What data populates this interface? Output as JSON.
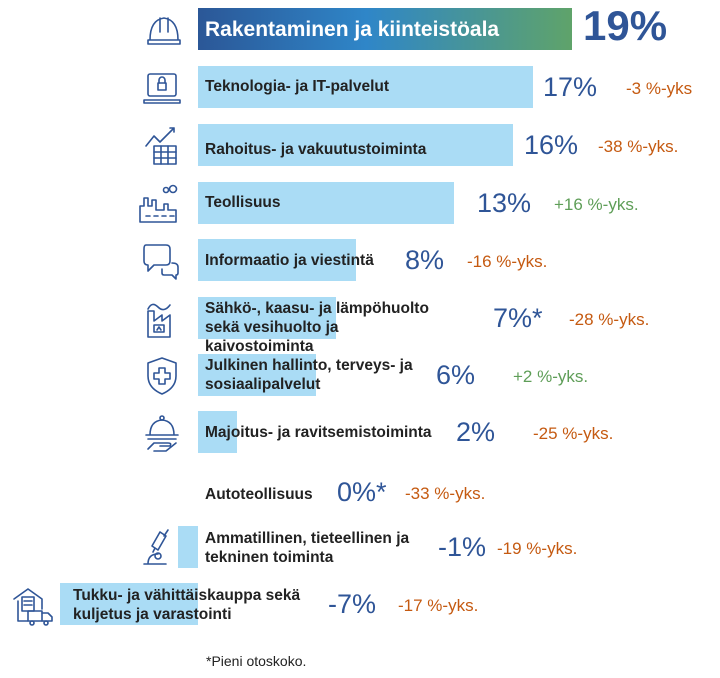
{
  "chart_data": {
    "type": "bar",
    "orientation": "horizontal",
    "unit": "%",
    "categories": [
      "Rakentaminen ja kiinteistöala",
      "Teknologia- ja IT-palvelut",
      "Rahoitus- ja vakuutustoiminta",
      "Teollisuus",
      "Informaatio ja viestintä",
      "Sähkö-, kaasu- ja lämpöhuolto sekä vesihuolto ja kaivostoiminta",
      "Julkinen hallinto, terveys- ja sosiaalipalvelut",
      "Majoitus- ja ravitsemistoiminta",
      "Autoteollisuus",
      "Ammatillinen, tieteellinen ja tekninen toiminta",
      "Tukku- ja vähittäiskauppa sekä kuljetus ja varastointi"
    ],
    "values": [
      19,
      17,
      16,
      13,
      8,
      7,
      6,
      2,
      0,
      -1,
      -7
    ],
    "value_labels": [
      "19%",
      "17%",
      "16%",
      "13%",
      "8%",
      "7%*",
      "6%",
      "2%",
      "0%*",
      "-1%",
      "-7%"
    ],
    "change_labels": [
      "",
      "-3 %-yks",
      "-38 %-yks.",
      "+16 %-yks.",
      "-16 %-yks.",
      "-28 %-yks.",
      "+2 %-yks.",
      "-25 %-yks.",
      "-33 %-yks.",
      "-19 %-yks.",
      "-17 %-yks."
    ],
    "icons": [
      "hard-hat-icon",
      "laptop-lock-icon",
      "finance-chart-icon",
      "factory-icon",
      "chat-bubbles-icon",
      "power-plant-icon",
      "health-shield-icon",
      "serving-cloche-icon",
      "",
      "microscope-icon",
      "warehouse-truck-icon"
    ],
    "footnote": "*Pieni otoskoko.",
    "colors": {
      "bar": "#aadcf5",
      "highlight_gradient": [
        "#2b5797",
        "#2f86c8",
        "#5fa36a"
      ],
      "value": "#2f5597",
      "negative_change": "#c55a11",
      "positive_change": "#5f9e58"
    }
  }
}
